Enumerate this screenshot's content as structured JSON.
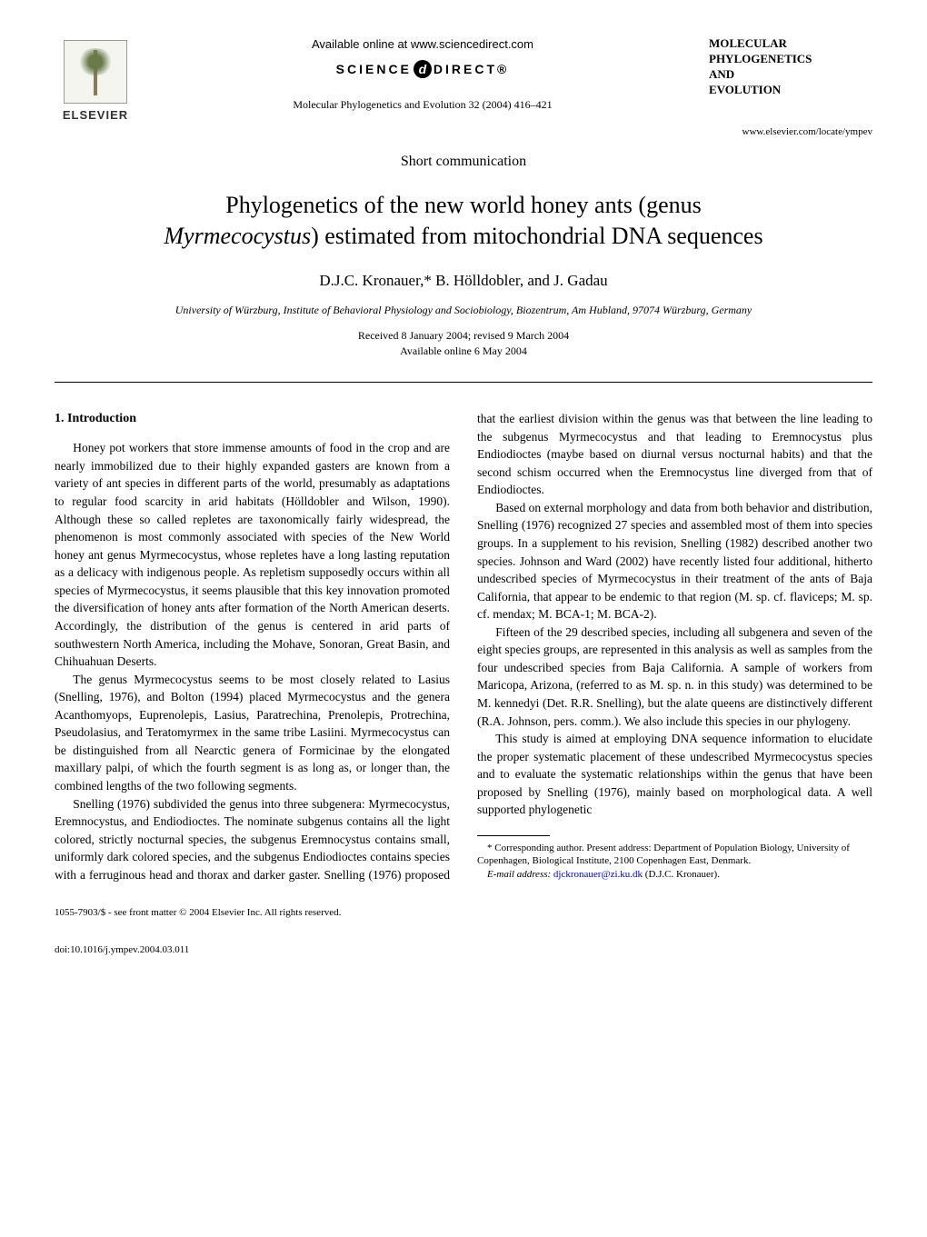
{
  "header": {
    "publisher_name": "ELSEVIER",
    "available_text": "Available online at www.sciencedirect.com",
    "sciencedirect_prefix": "SCIENCE",
    "sciencedirect_suffix": "DIRECT®",
    "journal_ref": "Molecular Phylogenetics and Evolution 32 (2004) 416–421",
    "journal_box_line1": "MOLECULAR",
    "journal_box_line2": "PHYLOGENETICS",
    "journal_box_line3": "AND",
    "journal_box_line4": "EVOLUTION",
    "journal_url": "www.elsevier.com/locate/ympev"
  },
  "article": {
    "section_type": "Short communication",
    "title_line1": "Phylogenetics of the new world honey ants (genus",
    "title_line2_italic": "Myrmecocystus",
    "title_line2_rest": ") estimated from mitochondrial DNA sequences",
    "authors": "D.J.C. Kronauer,* B. Hölldobler, and J. Gadau",
    "affiliation": "University of Würzburg, Institute of Behavioral Physiology and Sociobiology, Biozentrum, Am Hubland, 97074 Würzburg, Germany",
    "received": "Received 8 January 2004; revised 9 March 2004",
    "available": "Available online 6 May 2004"
  },
  "section1_heading": "1. Introduction",
  "para1": "Honey pot workers that store immense amounts of food in the crop and are nearly immobilized due to their highly expanded gasters are known from a variety of ant species in different parts of the world, presumably as adaptations to regular food scarcity in arid habitats (Hölldobler and Wilson, 1990). Although these so called repletes are taxonomically fairly widespread, the phenomenon is most commonly associated with species of the New World honey ant genus Myrmecocystus, whose repletes have a long lasting reputation as a delicacy with indigenous people. As repletism supposedly occurs within all species of Myrmecocystus, it seems plausible that this key innovation promoted the diversification of honey ants after formation of the North American deserts. Accordingly, the distribution of the genus is centered in arid parts of southwestern North America, including the Mohave, Sonoran, Great Basin, and Chihuahuan Deserts.",
  "para2": "The genus Myrmecocystus seems to be most closely related to Lasius (Snelling, 1976), and Bolton (1994) placed Myrmecocystus and the genera Acanthomyops, Euprenolepis, Lasius, Paratrechina, Prenolepis, Protrechina, Pseudolasius, and Teratomyrmex in the same tribe Lasiini. Myrmecocystus can be distinguished from all Nearctic genera of Formicinae by the elongated maxillary palpi, of which the fourth segment is as long as, or longer than, the combined lengths of the two following segments.",
  "para3": "Snelling (1976) subdivided the genus into three subgenera: Myrmecocystus, Eremnocystus, and Endiodioctes. The nominate subgenus contains all the light colored, strictly nocturnal species, the subgenus Eremnocystus contains small, uniformly dark colored species, and the subgenus Endiodioctes contains species with a ferruginous head and thorax and darker gaster. Snelling (1976) proposed that the earliest division within the genus was that between the line leading to the subgenus Myrmecocystus and that leading to Eremnocystus plus Endiodioctes (maybe based on diurnal versus nocturnal habits) and that the second schism occurred when the Eremnocystus line diverged from that of Endiodioctes.",
  "para4": "Based on external morphology and data from both behavior and distribution, Snelling (1976) recognized 27 species and assembled most of them into species groups. In a supplement to his revision, Snelling (1982) described another two species. Johnson and Ward (2002) have recently listed four additional, hitherto undescribed species of Myrmecocystus in their treatment of the ants of Baja California, that appear to be endemic to that region (M. sp. cf. flaviceps; M. sp. cf. mendax; M. BCA-1; M. BCA-2).",
  "para5": "Fifteen of the 29 described species, including all subgenera and seven of the eight species groups, are represented in this analysis as well as samples from the four undescribed species from Baja California. A sample of workers from Maricopa, Arizona, (referred to as M. sp. n. in this study) was determined to be M. kennedyi (Det. R.R. Snelling), but the alate queens are distinctively different (R.A. Johnson, pers. comm.). We also include this species in our phylogeny.",
  "para6": "This study is aimed at employing DNA sequence information to elucidate the proper systematic placement of these undescribed Myrmecocystus species and to evaluate the systematic relationships within the genus that have been proposed by Snelling (1976), mainly based on morphological data. A well supported phylogenetic",
  "footnote": {
    "corresponding": "* Corresponding author. Present address: Department of Population Biology, University of Copenhagen, Biological Institute, 2100 Copenhagen East, Denmark.",
    "email_label": "E-mail address:",
    "email": "djckronauer@zi.ku.dk",
    "email_person": "(D.J.C. Kronauer)."
  },
  "bottom": {
    "copyright": "1055-7903/$ - see front matter © 2004 Elsevier Inc. All rights reserved.",
    "doi": "doi:10.1016/j.ympev.2004.03.011"
  }
}
